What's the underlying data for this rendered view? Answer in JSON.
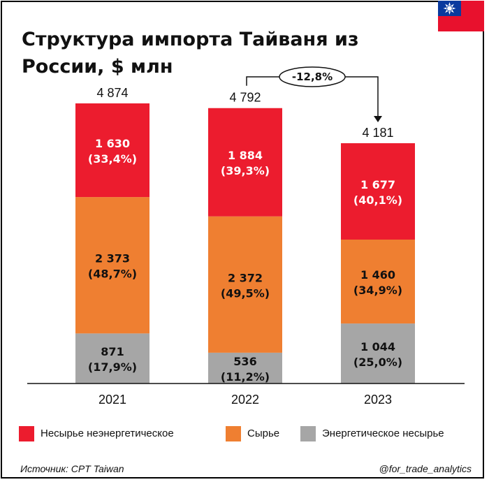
{
  "title": "Структура импорта Тайваня из России, $ млн",
  "source": "Источник: CPT Taiwan",
  "handle": "@for_trade_analytics",
  "flag": "taiwan-flag",
  "colors": {
    "accent_red": "#ec1c2e",
    "orange": "#ef7f31",
    "gray": "#a6a6a6"
  },
  "chart_data": {
    "type": "bar",
    "stacked": true,
    "categories": [
      "2021",
      "2022",
      "2023"
    ],
    "totals": [
      "4 874",
      "4 792",
      "4 181"
    ],
    "total_values": [
      4874,
      4792,
      4181
    ],
    "ylim": [
      0,
      4874
    ],
    "series": [
      {
        "name": "Энергетическое несырье",
        "color": "#a6a6a6",
        "values": [
          871,
          536,
          1044
        ],
        "labels": [
          "871",
          "536",
          "1 044"
        ],
        "shares": [
          "(17,9%)",
          "(11,2%)",
          "(25,0%)"
        ],
        "text_color": "#111111"
      },
      {
        "name": "Сырье",
        "color": "#ef7f31",
        "values": [
          2373,
          2372,
          1460
        ],
        "labels": [
          "2 373",
          "2 372",
          "1 460"
        ],
        "shares": [
          "(48,7%)",
          "(49,5%)",
          "(34,9%)"
        ],
        "text_color": "#111111"
      },
      {
        "name": "Несырье неэнергетическое",
        "color": "#ec1c2e",
        "values": [
          1630,
          1884,
          1677
        ],
        "labels": [
          "1 630",
          "1 884",
          "1 677"
        ],
        "shares": [
          "(33,4%)",
          "(39,3%)",
          "(40,1%)"
        ],
        "text_color": "#ffffff"
      }
    ],
    "change_annotation": {
      "from": "2022",
      "to": "2023",
      "label": "-12,8%"
    },
    "legend": {
      "position": "bottom",
      "items": [
        "Несырье неэнергетическое",
        "Сырье",
        "Энергетическое несырье"
      ]
    }
  }
}
